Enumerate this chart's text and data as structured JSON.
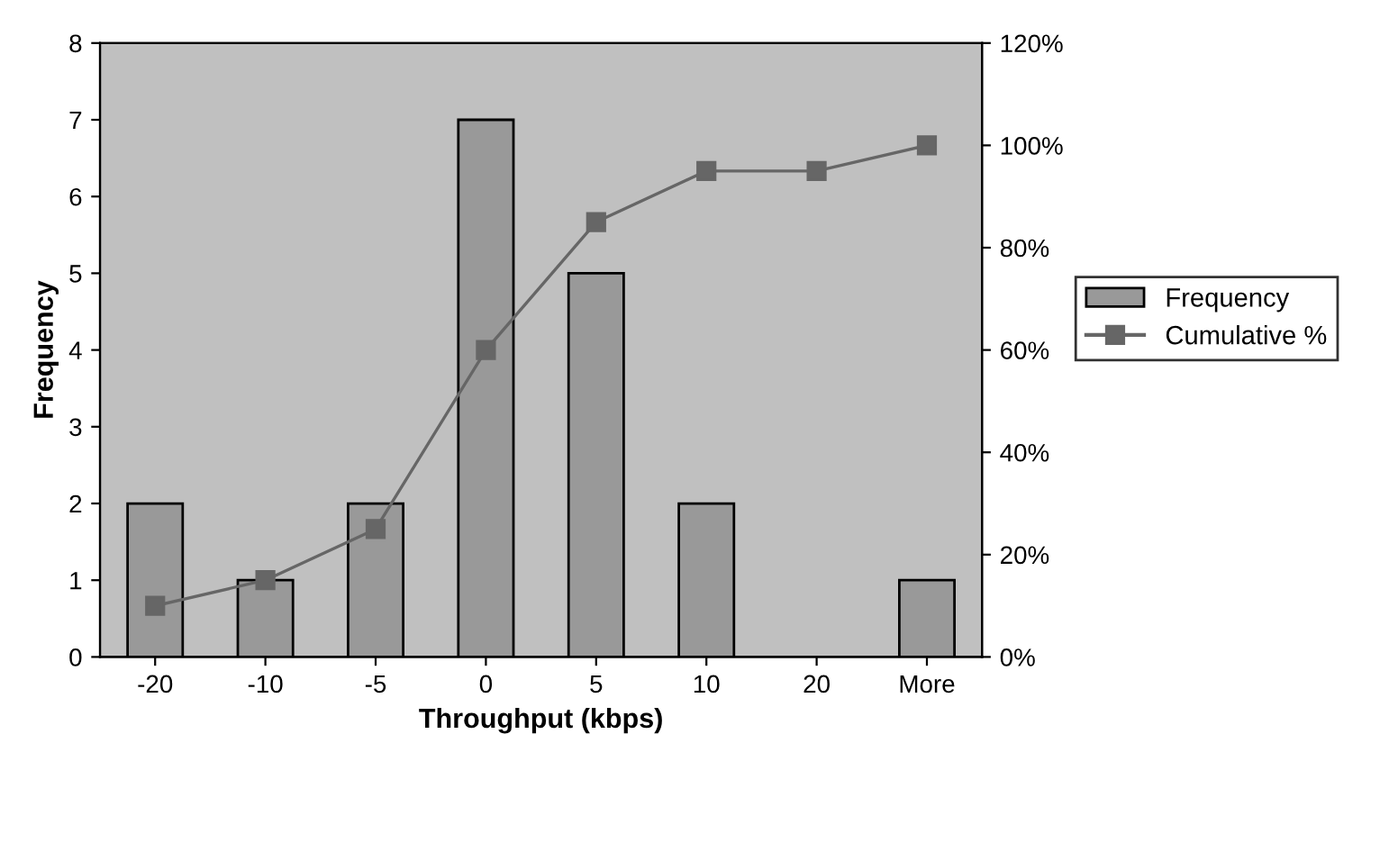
{
  "chart_data": {
    "type": "bar",
    "xlabel": "Throughput (kbps)",
    "ylabel": "Frequency",
    "categories": [
      "-20",
      "-10",
      "-5",
      "0",
      "5",
      "10",
      "20",
      "More"
    ],
    "series": [
      {
        "name": "Frequency",
        "color": "#999999",
        "values": [
          2,
          1,
          2,
          7,
          5,
          2,
          0,
          1
        ]
      },
      {
        "name": "Cumulative %",
        "type": "line",
        "axis": "y2",
        "color": "#666666",
        "marker": "square",
        "values": [
          10,
          15,
          25,
          60,
          85,
          95,
          95,
          100
        ]
      }
    ],
    "ylim": [
      0,
      8
    ],
    "yticks": [
      0,
      1,
      2,
      3,
      4,
      5,
      6,
      7,
      8
    ],
    "y2lim": [
      0,
      120
    ],
    "y2ticks": [
      {
        "value": 0,
        "label": "0%"
      },
      {
        "value": 20,
        "label": "20%"
      },
      {
        "value": 40,
        "label": "40%"
      },
      {
        "value": 60,
        "label": "60%"
      },
      {
        "value": 80,
        "label": "80%"
      },
      {
        "value": 100,
        "label": "100%"
      },
      {
        "value": 120,
        "label": "120%"
      }
    ],
    "grid": false,
    "legend": "right"
  }
}
